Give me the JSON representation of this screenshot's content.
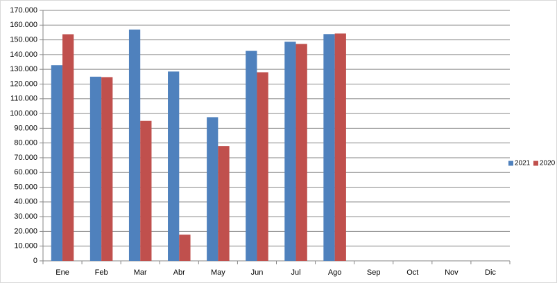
{
  "chart_data": {
    "type": "bar",
    "categories": [
      "Ene",
      "Feb",
      "Mar",
      "Abr",
      "May",
      "Jun",
      "Jul",
      "Ago",
      "Sep",
      "Oct",
      "Nov",
      "Dic"
    ],
    "series": [
      {
        "name": "2021",
        "color": "#4f81bd",
        "values": [
          132800,
          125000,
          157000,
          128500,
          97500,
          142500,
          148700,
          153900,
          null,
          null,
          null,
          null
        ]
      },
      {
        "name": "2020",
        "color": "#c0504d",
        "values": [
          153800,
          124700,
          95000,
          17800,
          77900,
          128000,
          147200,
          154300,
          null,
          null,
          null,
          null
        ]
      }
    ],
    "ylim": [
      0,
      170000
    ],
    "yticks": [
      0,
      {
        "value": 10000,
        "label": "10.000"
      },
      {
        "value": 20000,
        "label": "20.000"
      },
      {
        "value": 30000,
        "label": "30.000"
      },
      {
        "value": 40000,
        "label": "40.000"
      },
      {
        "value": 50000,
        "label": "50.000"
      },
      {
        "value": 60000,
        "label": "60.000"
      },
      {
        "value": 70000,
        "label": "70.000"
      },
      {
        "value": 80000,
        "label": "80.000"
      },
      {
        "value": 90000,
        "label": "90.000"
      },
      {
        "value": 100000,
        "label": "100.000"
      },
      {
        "value": 110000,
        "label": "110.000"
      },
      {
        "value": 120000,
        "label": "120.000"
      },
      {
        "value": 130000,
        "label": "130.000"
      },
      {
        "value": 140000,
        "label": "140.000"
      },
      {
        "value": 150000,
        "label": "150.000"
      },
      {
        "value": 160000,
        "label": "160.000"
      },
      {
        "value": 170000,
        "label": "170.000"
      }
    ],
    "grid": true,
    "legend": "right"
  }
}
